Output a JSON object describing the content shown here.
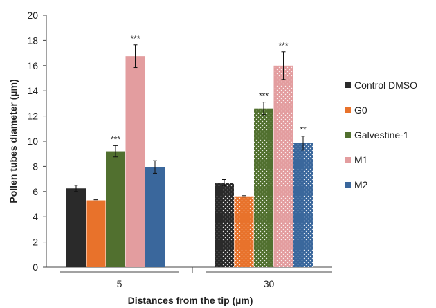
{
  "chart_data": {
    "type": "bar",
    "title": "",
    "xlabel": "Distances from the tip (µm)",
    "ylabel": "Pollen tubes diameter (µm)",
    "ylim": [
      0,
      20
    ],
    "yticks": [
      0,
      2,
      4,
      6,
      8,
      10,
      12,
      14,
      16,
      18,
      20
    ],
    "categories": [
      "5",
      "30"
    ],
    "legend_position": "right",
    "series": [
      {
        "name": "Control DMSO",
        "color": "#2a2a2a",
        "values": [
          6.25,
          6.7
        ],
        "errors": [
          0.25,
          0.25
        ],
        "labels": [
          "",
          ""
        ]
      },
      {
        "name": "G0",
        "color": "#e8722b",
        "values": [
          5.3,
          5.62
        ],
        "errors": [
          0.05,
          0.05
        ],
        "labels": [
          "",
          ""
        ]
      },
      {
        "name": "Galvestine-1",
        "color": "#51702f",
        "values": [
          9.2,
          12.6
        ],
        "errors": [
          0.45,
          0.5
        ],
        "labels": [
          "***",
          "***"
        ]
      },
      {
        "name": "M1",
        "color": "#e39d9f",
        "values": [
          16.75,
          16.0
        ],
        "errors": [
          0.9,
          1.1
        ],
        "labels": [
          "***",
          "***"
        ]
      },
      {
        "name": "M2",
        "color": "#3a679c",
        "values": [
          7.95,
          9.85
        ],
        "errors": [
          0.5,
          0.55
        ],
        "labels": [
          "",
          "**"
        ]
      }
    ],
    "patterned_category_index": 1
  }
}
